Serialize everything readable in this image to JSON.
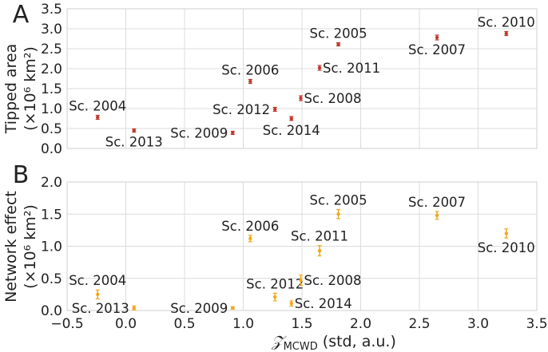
{
  "chart_data": [
    {
      "type": "scatter",
      "panel_letter": "A",
      "ylabel_line1": "Tipped area",
      "ylabel_line2": "(×10⁶ km²)",
      "xlim": [
        -0.5,
        3.5
      ],
      "ylim": [
        0,
        3.5
      ],
      "yticks": [
        0.0,
        0.5,
        1.0,
        1.5,
        2.0,
        2.5,
        3.0,
        3.5
      ],
      "ytick_labels": [
        "0.0",
        "0.5",
        "1.0",
        "1.5",
        "2.0",
        "2.5",
        "3.0",
        "3.5"
      ],
      "grid": true,
      "marker_color": "#c0392b",
      "points": [
        {
          "label": "Sc. 2004",
          "x": -0.24,
          "y": 0.78,
          "err": 0.05,
          "label_pos": "top"
        },
        {
          "label": "Sc. 2013",
          "x": 0.07,
          "y": 0.45,
          "err": 0.04,
          "label_pos": "bottom"
        },
        {
          "label": "Sc. 2009",
          "x": 0.91,
          "y": 0.39,
          "err": 0.04,
          "label_pos": "left"
        },
        {
          "label": "Sc. 2006",
          "x": 1.06,
          "y": 1.68,
          "err": 0.05,
          "label_pos": "top"
        },
        {
          "label": "Sc. 2012",
          "x": 1.27,
          "y": 0.98,
          "err": 0.05,
          "label_pos": "left"
        },
        {
          "label": "Sc. 2014",
          "x": 1.41,
          "y": 0.75,
          "err": 0.05,
          "label_pos": "bottom"
        },
        {
          "label": "Sc. 2008",
          "x": 1.49,
          "y": 1.26,
          "err": 0.06,
          "label_pos": "right"
        },
        {
          "label": "Sc. 2011",
          "x": 1.65,
          "y": 2.02,
          "err": 0.06,
          "label_pos": "right"
        },
        {
          "label": "Sc. 2005",
          "x": 1.81,
          "y": 2.61,
          "err": 0.04,
          "label_pos": "top"
        },
        {
          "label": "Sc. 2007",
          "x": 2.65,
          "y": 2.78,
          "err": 0.06,
          "label_pos": "bottom"
        },
        {
          "label": "Sc. 2010",
          "x": 3.24,
          "y": 2.88,
          "err": 0.05,
          "label_pos": "top"
        }
      ]
    },
    {
      "type": "scatter",
      "panel_letter": "B",
      "ylabel_line1": "Network effect",
      "ylabel_line2": "(×10⁶ km²)",
      "xlabel_symbol": "𝒵",
      "xlabel_sub": "MCWD",
      "xlabel_rest": " (std, a.u.)",
      "xlim": [
        -0.5,
        3.5
      ],
      "ylim": [
        0,
        2.0
      ],
      "xticks": [
        -0.5,
        0.0,
        0.5,
        1.0,
        1.5,
        2.0,
        2.5,
        3.0,
        3.5
      ],
      "xtick_labels": [
        "−0.5",
        "0.0",
        "0.5",
        "1.0",
        "1.5",
        "2.0",
        "2.5",
        "3.0",
        "3.5"
      ],
      "yticks": [
        0.0,
        0.5,
        1.0,
        1.5,
        2.0
      ],
      "ytick_labels": [
        "0.0",
        "0.5",
        "1.0",
        "1.5",
        "2.0"
      ],
      "grid": true,
      "marker_color": "#f0a81c",
      "points": [
        {
          "label": "Sc. 2004",
          "x": -0.24,
          "y": 0.25,
          "err": 0.07,
          "label_pos": "top"
        },
        {
          "label": "Sc. 2013",
          "x": 0.07,
          "y": 0.04,
          "err": 0.03,
          "label_pos": "left"
        },
        {
          "label": "Sc. 2009",
          "x": 0.91,
          "y": 0.04,
          "err": 0.02,
          "label_pos": "left"
        },
        {
          "label": "Sc. 2006",
          "x": 1.06,
          "y": 1.12,
          "err": 0.05,
          "label_pos": "top"
        },
        {
          "label": "Sc. 2012",
          "x": 1.27,
          "y": 0.21,
          "err": 0.06,
          "label_pos": "top"
        },
        {
          "label": "Sc. 2014",
          "x": 1.41,
          "y": 0.11,
          "err": 0.04,
          "label_pos": "right"
        },
        {
          "label": "Sc. 2008",
          "x": 1.49,
          "y": 0.47,
          "err": 0.08,
          "label_pos": "right"
        },
        {
          "label": "Sc. 2011",
          "x": 1.65,
          "y": 0.93,
          "err": 0.08,
          "label_pos": "top"
        },
        {
          "label": "Sc. 2005",
          "x": 1.81,
          "y": 1.5,
          "err": 0.07,
          "label_pos": "top"
        },
        {
          "label": "Sc. 2007",
          "x": 2.65,
          "y": 1.48,
          "err": 0.06,
          "label_pos": "top"
        },
        {
          "label": "Sc. 2010",
          "x": 3.24,
          "y": 1.2,
          "err": 0.07,
          "label_pos": "bottom"
        }
      ]
    }
  ]
}
